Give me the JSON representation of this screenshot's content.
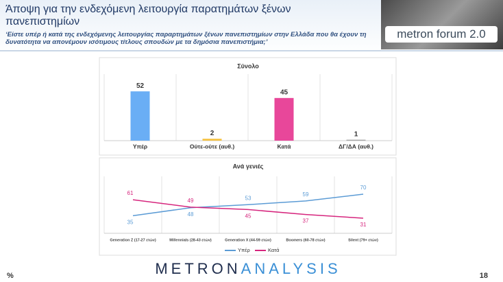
{
  "header": {
    "title": "Άποψη για την ενδεχόμενη λειτουργία παρατημάτων ξένων πανεπιστημίων",
    "subtitle": "‘Είστε υπέρ ή κατά της ενδεχόμενης λειτουργίας παραρτημάτων ξένων πανεπιστημίων στην Ελλάδα που θα έχουν τη δυνατότητα να απονέμουν ισότιμους τίτλους σπουδών με τα δημόσια πανεπιστήμια;’",
    "logo_text": "metron forum 2.0"
  },
  "chart_data": [
    {
      "type": "bar",
      "title": "Σύνολο",
      "categories": [
        "Υπέρ",
        "Ούτε-ούτε (αυθ.)",
        "Κατά",
        "ΔΓ/ΔΑ (αυθ.)"
      ],
      "values": [
        52,
        2,
        45,
        1
      ],
      "colors": [
        "#6aaef5",
        "#f5c242",
        "#e8479a",
        "#a6a6a6"
      ]
    },
    {
      "type": "line",
      "title": "Ανά γενιές",
      "categories": [
        "Generation Z (17-27 ετών)",
        "Millennials (28-43 ετών)",
        "Generation X (44-59 ετών)",
        "Boomers (60-78 ετών)",
        "Silent (79+ ετών)"
      ],
      "series": [
        {
          "name": "Υπέρ",
          "color": "#5b9bd5",
          "values": [
            35,
            48,
            53,
            59,
            70
          ]
        },
        {
          "name": "Κατά",
          "color": "#d6257d",
          "values": [
            61,
            49,
            45,
            37,
            31
          ]
        }
      ],
      "legend": "bottom"
    }
  ],
  "footer": {
    "unit": "%",
    "brand_a": "METRON",
    "brand_b": "ANALYSIS",
    "page": "18"
  }
}
